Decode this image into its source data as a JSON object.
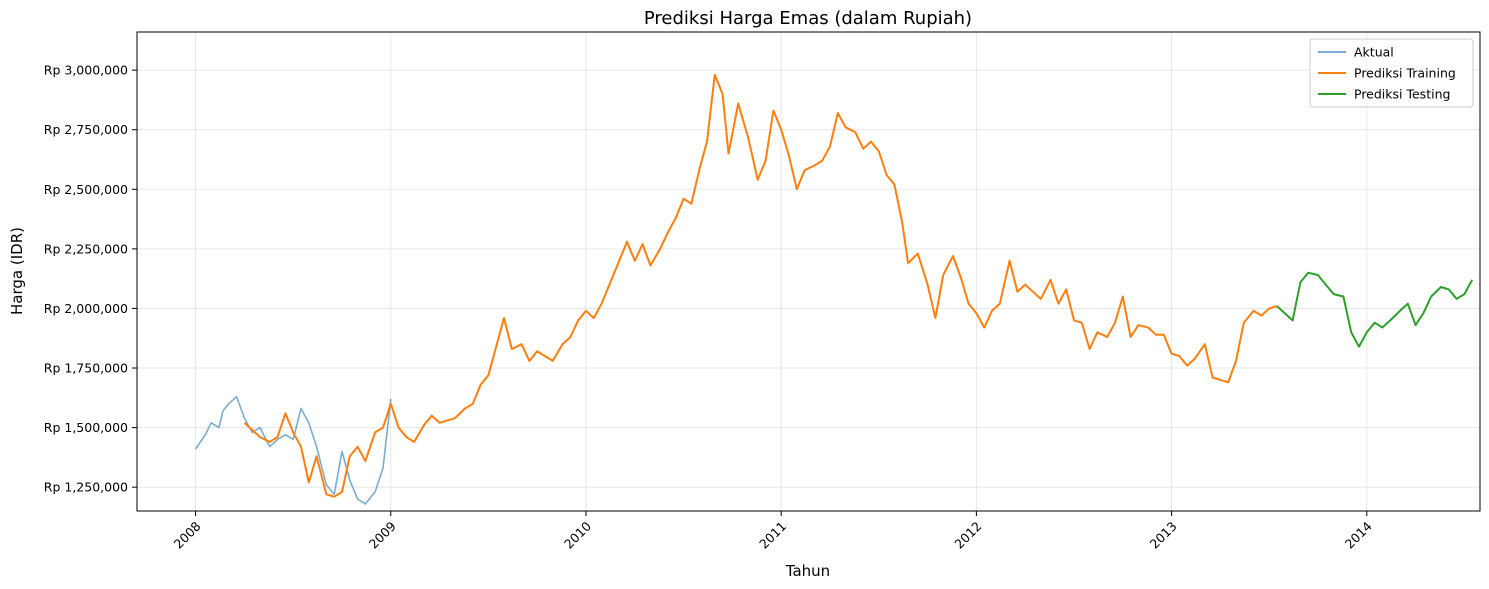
{
  "chart_data": {
    "type": "line",
    "title": "Prediksi Harga Emas (dalam Rupiah)",
    "xlabel": "Tahun",
    "ylabel": "Harga (IDR)",
    "x_ticks": [
      2008,
      2009,
      2010,
      2011,
      2012,
      2013,
      2014
    ],
    "y_ticks": [
      1250000,
      1500000,
      1750000,
      2000000,
      2250000,
      2500000,
      2750000,
      3000000
    ],
    "y_tick_labels": [
      "Rp 1,250,000",
      "Rp 1,500,000",
      "Rp 1,750,000",
      "Rp 2,000,000",
      "Rp 2,250,000",
      "Rp 2,500,000",
      "Rp 2,750,000",
      "Rp 3,000,000"
    ],
    "xlim": [
      2007.7,
      2014.58
    ],
    "ylim": [
      1150000,
      3160000
    ],
    "grid": true,
    "legend_position": "top-right",
    "series": [
      {
        "name": "Aktual",
        "color": "#1f77b4",
        "opacity": 0.6,
        "points": [
          [
            2008.0,
            1410000
          ],
          [
            2008.05,
            1470000
          ],
          [
            2008.08,
            1520000
          ],
          [
            2008.12,
            1500000
          ],
          [
            2008.14,
            1570000
          ],
          [
            2008.17,
            1600000
          ],
          [
            2008.21,
            1630000
          ],
          [
            2008.25,
            1540000
          ],
          [
            2008.29,
            1480000
          ],
          [
            2008.33,
            1500000
          ],
          [
            2008.38,
            1420000
          ],
          [
            2008.42,
            1450000
          ],
          [
            2008.46,
            1470000
          ],
          [
            2008.5,
            1450000
          ],
          [
            2008.54,
            1580000
          ],
          [
            2008.58,
            1520000
          ],
          [
            2008.62,
            1420000
          ],
          [
            2008.67,
            1260000
          ],
          [
            2008.71,
            1220000
          ],
          [
            2008.75,
            1400000
          ],
          [
            2008.79,
            1280000
          ],
          [
            2008.83,
            1200000
          ],
          [
            2008.87,
            1180000
          ],
          [
            2008.92,
            1230000
          ],
          [
            2008.96,
            1330000
          ],
          [
            2009.0,
            1620000
          ]
        ]
      },
      {
        "name": "Prediksi Training",
        "color": "#ff7f0e",
        "opacity": 1,
        "points": [
          [
            2008.25,
            1520000
          ],
          [
            2008.29,
            1490000
          ],
          [
            2008.33,
            1460000
          ],
          [
            2008.38,
            1440000
          ],
          [
            2008.42,
            1460000
          ],
          [
            2008.46,
            1560000
          ],
          [
            2008.5,
            1480000
          ],
          [
            2008.54,
            1420000
          ],
          [
            2008.58,
            1270000
          ],
          [
            2008.62,
            1380000
          ],
          [
            2008.67,
            1220000
          ],
          [
            2008.71,
            1210000
          ],
          [
            2008.75,
            1230000
          ],
          [
            2008.79,
            1380000
          ],
          [
            2008.83,
            1420000
          ],
          [
            2008.87,
            1360000
          ],
          [
            2008.92,
            1480000
          ],
          [
            2008.96,
            1500000
          ],
          [
            2009.0,
            1600000
          ],
          [
            2009.04,
            1500000
          ],
          [
            2009.08,
            1460000
          ],
          [
            2009.12,
            1440000
          ],
          [
            2009.17,
            1510000
          ],
          [
            2009.21,
            1550000
          ],
          [
            2009.25,
            1520000
          ],
          [
            2009.29,
            1530000
          ],
          [
            2009.33,
            1540000
          ],
          [
            2009.38,
            1580000
          ],
          [
            2009.42,
            1600000
          ],
          [
            2009.46,
            1680000
          ],
          [
            2009.5,
            1720000
          ],
          [
            2009.54,
            1840000
          ],
          [
            2009.58,
            1960000
          ],
          [
            2009.62,
            1830000
          ],
          [
            2009.67,
            1850000
          ],
          [
            2009.71,
            1780000
          ],
          [
            2009.75,
            1820000
          ],
          [
            2009.79,
            1800000
          ],
          [
            2009.83,
            1780000
          ],
          [
            2009.88,
            1850000
          ],
          [
            2009.92,
            1880000
          ],
          [
            2009.96,
            1950000
          ],
          [
            2010.0,
            1990000
          ],
          [
            2010.04,
            1960000
          ],
          [
            2010.08,
            2020000
          ],
          [
            2010.12,
            2100000
          ],
          [
            2010.17,
            2200000
          ],
          [
            2010.21,
            2280000
          ],
          [
            2010.25,
            2200000
          ],
          [
            2010.29,
            2270000
          ],
          [
            2010.33,
            2180000
          ],
          [
            2010.38,
            2250000
          ],
          [
            2010.42,
            2320000
          ],
          [
            2010.46,
            2380000
          ],
          [
            2010.5,
            2460000
          ],
          [
            2010.54,
            2440000
          ],
          [
            2010.58,
            2580000
          ],
          [
            2010.62,
            2700000
          ],
          [
            2010.66,
            2980000
          ],
          [
            2010.7,
            2900000
          ],
          [
            2010.73,
            2650000
          ],
          [
            2010.78,
            2860000
          ],
          [
            2010.83,
            2720000
          ],
          [
            2010.88,
            2540000
          ],
          [
            2010.92,
            2620000
          ],
          [
            2010.96,
            2830000
          ],
          [
            2011.0,
            2750000
          ],
          [
            2011.04,
            2640000
          ],
          [
            2011.08,
            2500000
          ],
          [
            2011.12,
            2580000
          ],
          [
            2011.17,
            2600000
          ],
          [
            2011.21,
            2620000
          ],
          [
            2011.25,
            2680000
          ],
          [
            2011.29,
            2820000
          ],
          [
            2011.33,
            2760000
          ],
          [
            2011.38,
            2740000
          ],
          [
            2011.42,
            2670000
          ],
          [
            2011.46,
            2700000
          ],
          [
            2011.5,
            2660000
          ],
          [
            2011.54,
            2560000
          ],
          [
            2011.58,
            2520000
          ],
          [
            2011.62,
            2360000
          ],
          [
            2011.65,
            2190000
          ],
          [
            2011.7,
            2230000
          ],
          [
            2011.75,
            2100000
          ],
          [
            2011.79,
            1960000
          ],
          [
            2011.83,
            2140000
          ],
          [
            2011.88,
            2220000
          ],
          [
            2011.92,
            2130000
          ],
          [
            2011.96,
            2020000
          ],
          [
            2012.0,
            1980000
          ],
          [
            2012.04,
            1920000
          ],
          [
            2012.08,
            1990000
          ],
          [
            2012.12,
            2020000
          ],
          [
            2012.17,
            2200000
          ],
          [
            2012.21,
            2070000
          ],
          [
            2012.25,
            2100000
          ],
          [
            2012.29,
            2070000
          ],
          [
            2012.33,
            2040000
          ],
          [
            2012.38,
            2120000
          ],
          [
            2012.42,
            2020000
          ],
          [
            2012.46,
            2080000
          ],
          [
            2012.5,
            1950000
          ],
          [
            2012.54,
            1940000
          ],
          [
            2012.58,
            1830000
          ],
          [
            2012.62,
            1900000
          ],
          [
            2012.67,
            1880000
          ],
          [
            2012.71,
            1940000
          ],
          [
            2012.75,
            2050000
          ],
          [
            2012.79,
            1880000
          ],
          [
            2012.83,
            1930000
          ],
          [
            2012.88,
            1920000
          ],
          [
            2012.92,
            1890000
          ],
          [
            2012.96,
            1890000
          ],
          [
            2013.0,
            1810000
          ],
          [
            2013.04,
            1800000
          ],
          [
            2013.08,
            1760000
          ],
          [
            2013.12,
            1790000
          ],
          [
            2013.17,
            1850000
          ],
          [
            2013.21,
            1710000
          ],
          [
            2013.25,
            1700000
          ],
          [
            2013.29,
            1690000
          ],
          [
            2013.33,
            1780000
          ],
          [
            2013.37,
            1940000
          ],
          [
            2013.42,
            1990000
          ],
          [
            2013.46,
            1970000
          ],
          [
            2013.5,
            2000000
          ],
          [
            2013.54,
            2010000
          ]
        ]
      },
      {
        "name": "Prediksi Testing",
        "color": "#2ca02c",
        "opacity": 1,
        "points": [
          [
            2013.54,
            2010000
          ],
          [
            2013.58,
            1980000
          ],
          [
            2013.62,
            1950000
          ],
          [
            2013.66,
            2110000
          ],
          [
            2013.7,
            2150000
          ],
          [
            2013.75,
            2140000
          ],
          [
            2013.79,
            2100000
          ],
          [
            2013.83,
            2060000
          ],
          [
            2013.88,
            2050000
          ],
          [
            2013.92,
            1900000
          ],
          [
            2013.96,
            1840000
          ],
          [
            2014.0,
            1900000
          ],
          [
            2014.04,
            1940000
          ],
          [
            2014.08,
            1920000
          ],
          [
            2014.12,
            1950000
          ],
          [
            2014.17,
            1990000
          ],
          [
            2014.21,
            2020000
          ],
          [
            2014.25,
            1930000
          ],
          [
            2014.29,
            1980000
          ],
          [
            2014.33,
            2050000
          ],
          [
            2014.38,
            2090000
          ],
          [
            2014.42,
            2080000
          ],
          [
            2014.46,
            2040000
          ],
          [
            2014.5,
            2060000
          ],
          [
            2014.54,
            2120000
          ]
        ]
      }
    ]
  }
}
